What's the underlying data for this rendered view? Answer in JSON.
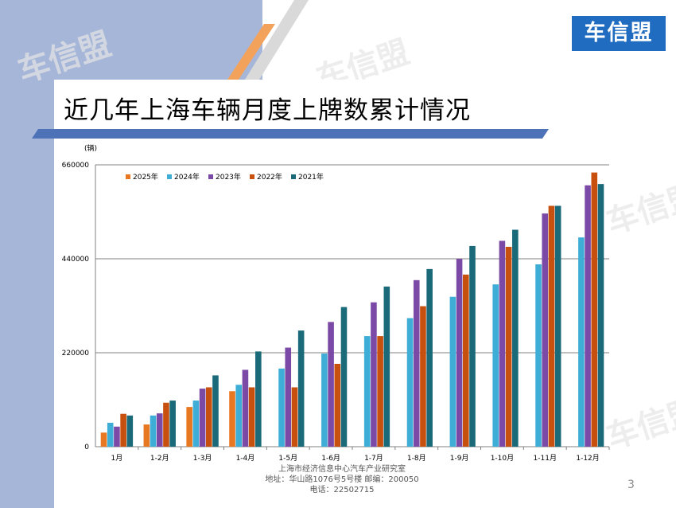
{
  "slide": {
    "title": "近几年上海车辆月度上牌数累计情况",
    "logo_text": "车信盟",
    "watermark_text": "车信盟",
    "page_number": "3",
    "footer": {
      "line1": "上海市经济信息中心汽车产业研究室",
      "line2": "地址：华山路1076号5号楼    邮编：200050",
      "line3": "电话：22502715"
    }
  },
  "colors": {
    "series": [
      "#e87722",
      "#3eaed6",
      "#7b4aa6",
      "#c8500f",
      "#1b6a7a"
    ],
    "band": "#a6b6d8",
    "logo": "#1f6cc0"
  },
  "chart_data": {
    "type": "bar",
    "ylabel": "(辆)",
    "ylim": [
      0,
      660000
    ],
    "yticks": [
      "0",
      "220000",
      "440000",
      "660000"
    ],
    "grid": true,
    "legend_position": "top-left",
    "categories": [
      "1月",
      "1-2月",
      "1-3月",
      "1-4月",
      "1-5月",
      "1-6月",
      "1-7月",
      "1-8月",
      "1-9月",
      "1-10月",
      "1-11月",
      "1-12月"
    ],
    "series": [
      {
        "name": "2025年",
        "values": [
          33000,
          52000,
          93000,
          130000,
          null,
          null,
          null,
          null,
          null,
          null,
          null,
          null
        ]
      },
      {
        "name": "2024年",
        "values": [
          56000,
          73000,
          108000,
          145000,
          183000,
          218000,
          259000,
          301000,
          351000,
          380000,
          427000,
          490000
        ]
      },
      {
        "name": "2023年",
        "values": [
          47000,
          78000,
          136000,
          180000,
          232000,
          292000,
          338000,
          390000,
          440000,
          482000,
          546000,
          612000
        ]
      },
      {
        "name": "2022年",
        "values": [
          77000,
          103000,
          139000,
          139000,
          139000,
          194000,
          259000,
          329000,
          403000,
          468000,
          564000,
          642000
        ]
      },
      {
        "name": "2021年",
        "values": [
          73000,
          108000,
          167000,
          223000,
          272000,
          327000,
          375000,
          416000,
          470000,
          508000,
          564000,
          615000
        ]
      }
    ]
  }
}
